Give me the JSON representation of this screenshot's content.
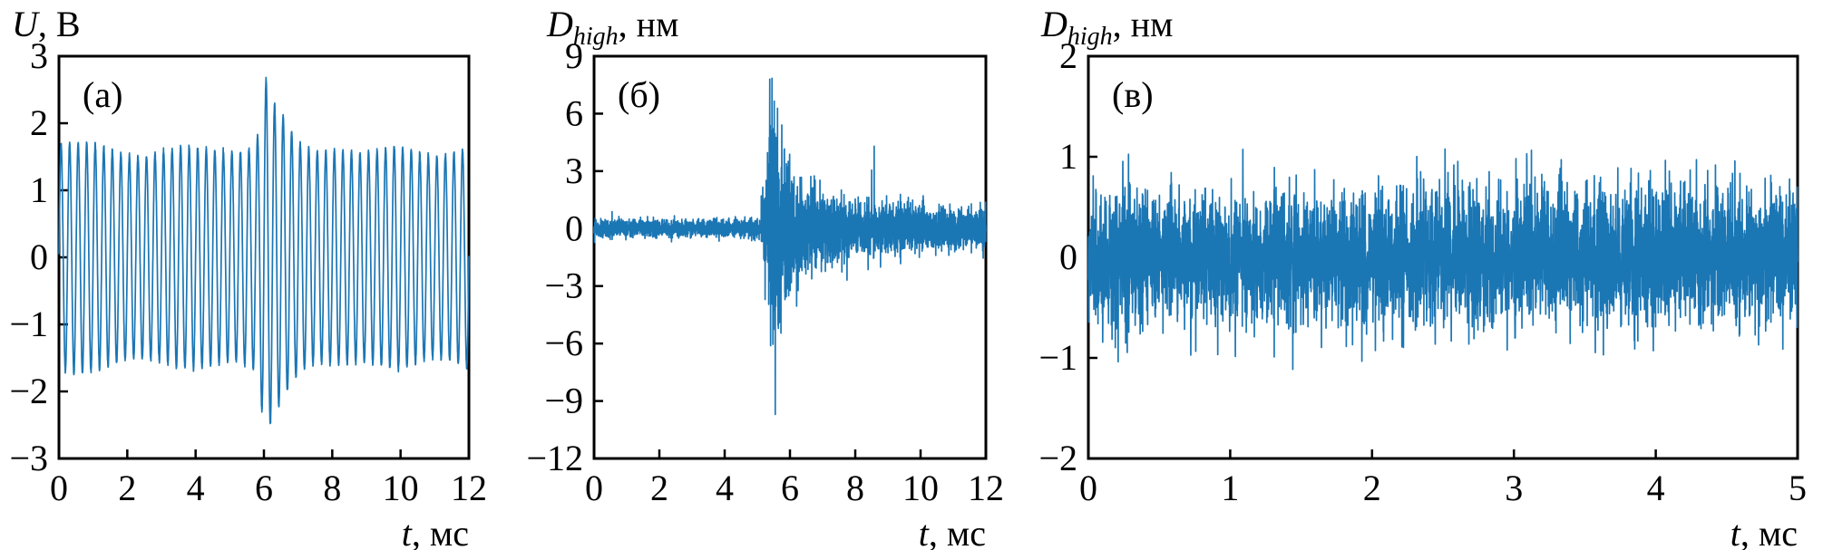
{
  "page": {
    "background": "#ffffff",
    "accent": "#1b76b4",
    "description_visible_text_only": true
  },
  "chart_data": [
    {
      "type": "line",
      "panel_label": "(а)",
      "ylabel": "U, В",
      "ylabel_var": "U",
      "ylabel_rest": ", В",
      "xlabel": "t, мс",
      "xlabel_var": "t",
      "xlabel_rest": ", мс",
      "xlim": [
        0,
        12
      ],
      "ylim": [
        -3,
        3
      ],
      "xticks": [
        0,
        2,
        4,
        6,
        8,
        10,
        12
      ],
      "yticks": [
        3,
        2,
        1,
        0,
        -1,
        -2,
        -3
      ],
      "grid": false,
      "legend": false,
      "line_color": "#1b76b4",
      "signal": {
        "kind": "tone_burst",
        "base_amplitude": 1.62,
        "frequency_per_ms": 4.0,
        "cycles_visible": 48,
        "transient_time": 6.05,
        "transient_peak": 2.3,
        "post_transient_min": -2.05
      }
    },
    {
      "type": "line",
      "panel_label": "(б)",
      "ylabel": "D_high, нм",
      "ylabel_var": "D",
      "ylabel_sub": "high",
      "ylabel_rest": ", нм",
      "xlabel": "t, мс",
      "xlabel_var": "t",
      "xlabel_rest": ", мс",
      "xlim": [
        0,
        12
      ],
      "ylim": [
        -12,
        9
      ],
      "xticks": [
        0,
        2,
        4,
        6,
        8,
        10,
        12
      ],
      "yticks": [
        9,
        6,
        3,
        0,
        -3,
        -6,
        -9,
        -12
      ],
      "grid": false,
      "legend": false,
      "line_color": "#1b76b4",
      "signal": {
        "kind": "noise_burst",
        "base_sigma": 0.22,
        "burst_start": 5.12,
        "burst_peak_time": 5.45,
        "burst_sigma": 2.2,
        "burst_decay": 0.55,
        "tail_sigma": 0.65,
        "tail_decay": 7.0,
        "peak_positive": {
          "t": 5.38,
          "value": 7.8
        },
        "peak_negative": {
          "t": 5.55,
          "value": -9.7
        },
        "clip": [
          -9.7,
          7.85
        ]
      }
    },
    {
      "type": "line",
      "panel_label": "(в)",
      "ylabel": "D_high, нм",
      "ylabel_var": "D",
      "ylabel_sub": "high",
      "ylabel_rest": ", нм",
      "xlabel": "t, мс",
      "xlabel_var": "t",
      "xlabel_rest": ", мс",
      "xlim": [
        0,
        5
      ],
      "ylim": [
        -2,
        2
      ],
      "xticks": [
        0,
        1,
        2,
        3,
        4,
        5
      ],
      "yticks": [
        2,
        1,
        0,
        -1,
        -2
      ],
      "grid": false,
      "legend": false,
      "line_color": "#1b76b4",
      "signal": {
        "kind": "noise",
        "sigma": 0.33,
        "typical_band": [
          -0.9,
          0.9
        ],
        "max_spike": 1.35,
        "min_spike": -1.15,
        "clip": [
          -1.15,
          1.4
        ]
      }
    }
  ]
}
